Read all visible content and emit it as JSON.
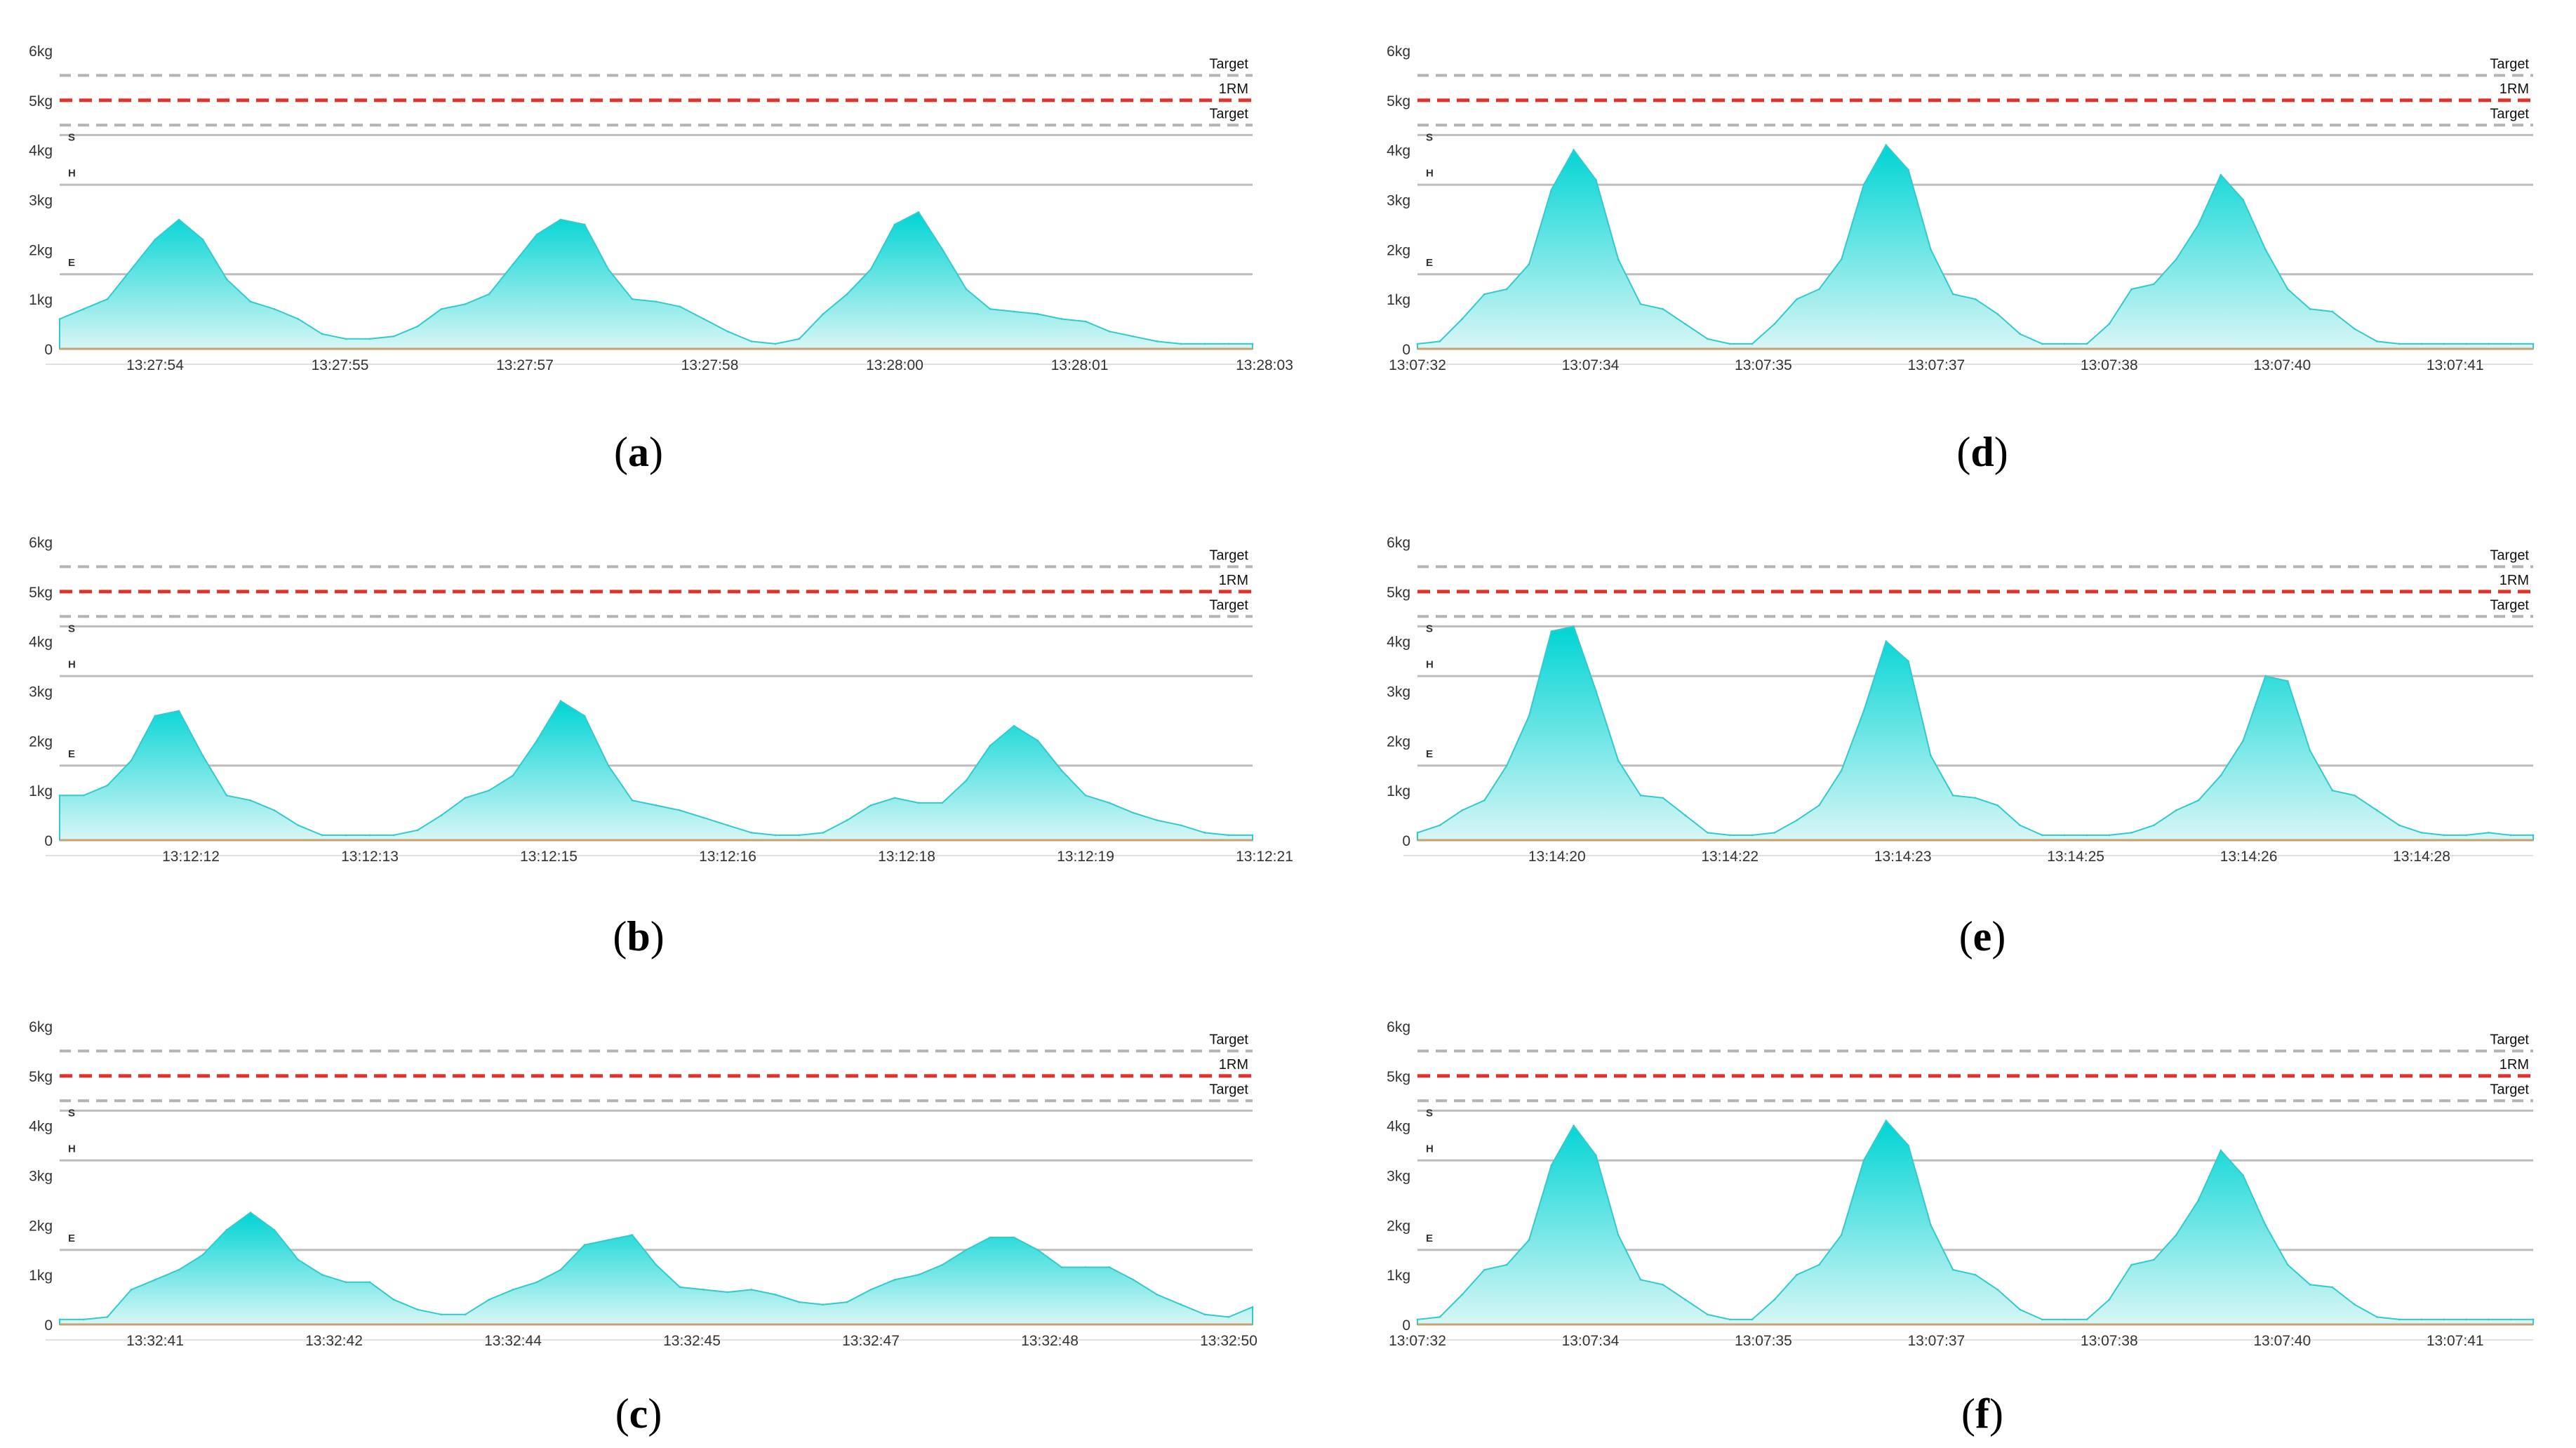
{
  "colors": {
    "area_top": "#00d4d4",
    "area_bottom": "#d8f6f6",
    "area_stroke": "#35c9c9",
    "one_rm": "#e0312a",
    "target_dash": "#b4b4b4",
    "zone_line": "#bdbdbd",
    "axis_text": "#333333",
    "baseline": "#c9a070"
  },
  "reference_lines": {
    "target_upper": {
      "value": 5.5,
      "label": "Target"
    },
    "one_rm": {
      "value": 5.0,
      "label": "1RM"
    },
    "target_lower": {
      "value": 4.5,
      "label": "Target"
    },
    "zones": [
      {
        "value": 4.3,
        "label": "S"
      },
      {
        "value": 3.3,
        "label": "H"
      },
      {
        "value": 1.5,
        "label": "E"
      }
    ]
  },
  "chart_data": [
    {
      "id": "a",
      "caption_letter": "a",
      "type": "area",
      "ylim": [
        0,
        6
      ],
      "yticks": [
        "0",
        "1kg",
        "2kg",
        "3kg",
        "4kg",
        "5kg",
        "6kg"
      ],
      "xlim": [
        0,
        100
      ],
      "xticks": [
        {
          "x": 8,
          "label": "13:27:54"
        },
        {
          "x": 23.5,
          "label": "13:27:55"
        },
        {
          "x": 39,
          "label": "13:27:57"
        },
        {
          "x": 54.5,
          "label": "13:27:58"
        },
        {
          "x": 70,
          "label": "13:28:00"
        },
        {
          "x": 85.5,
          "label": "13:28:01"
        },
        {
          "x": 101,
          "label": "13:28:03"
        }
      ],
      "x": [
        0,
        2,
        4,
        6,
        8,
        10,
        12,
        14,
        16,
        18,
        20,
        22,
        24,
        26,
        28,
        30,
        32,
        34,
        36,
        38,
        40,
        42,
        44,
        46,
        48,
        50,
        52,
        54,
        56,
        58,
        60,
        62,
        64,
        66,
        68,
        70,
        72,
        74,
        76,
        78,
        80,
        82,
        84,
        86,
        88,
        90,
        92,
        94,
        96,
        98,
        100
      ],
      "y": [
        0.6,
        0.8,
        1.0,
        1.6,
        2.2,
        2.6,
        2.2,
        1.4,
        0.95,
        0.8,
        0.6,
        0.3,
        0.2,
        0.2,
        0.25,
        0.45,
        0.8,
        0.9,
        1.1,
        1.7,
        2.3,
        2.6,
        2.5,
        1.6,
        1.0,
        0.95,
        0.85,
        0.6,
        0.35,
        0.15,
        0.1,
        0.2,
        0.7,
        1.1,
        1.6,
        2.5,
        2.75,
        2.0,
        1.2,
        0.8,
        0.75,
        0.7,
        0.6,
        0.55,
        0.35,
        0.25,
        0.15,
        0.1,
        0.1,
        0.1,
        0.1
      ]
    },
    {
      "id": "b",
      "caption_letter": "b",
      "type": "area",
      "ylim": [
        0,
        6
      ],
      "yticks": [
        "0",
        "1kg",
        "2kg",
        "3kg",
        "4kg",
        "5kg",
        "6kg"
      ],
      "xlim": [
        0,
        100
      ],
      "xticks": [
        {
          "x": 11,
          "label": "13:12:12"
        },
        {
          "x": 26,
          "label": "13:12:13"
        },
        {
          "x": 41,
          "label": "13:12:15"
        },
        {
          "x": 56,
          "label": "13:12:16"
        },
        {
          "x": 71,
          "label": "13:12:18"
        },
        {
          "x": 86,
          "label": "13:12:19"
        },
        {
          "x": 101,
          "label": "13:12:21"
        }
      ],
      "x": [
        0,
        2,
        4,
        6,
        8,
        10,
        12,
        14,
        16,
        18,
        20,
        22,
        24,
        26,
        28,
        30,
        32,
        34,
        36,
        38,
        40,
        42,
        44,
        46,
        48,
        50,
        52,
        54,
        56,
        58,
        60,
        62,
        64,
        66,
        68,
        70,
        72,
        74,
        76,
        78,
        80,
        82,
        84,
        86,
        88,
        90,
        92,
        94,
        96,
        98,
        100
      ],
      "y": [
        0.9,
        0.9,
        1.1,
        1.6,
        2.5,
        2.6,
        1.7,
        0.9,
        0.8,
        0.6,
        0.3,
        0.1,
        0.1,
        0.1,
        0.1,
        0.2,
        0.5,
        0.85,
        1.0,
        1.3,
        2.0,
        2.8,
        2.5,
        1.5,
        0.8,
        0.7,
        0.6,
        0.45,
        0.3,
        0.15,
        0.1,
        0.1,
        0.15,
        0.4,
        0.7,
        0.85,
        0.75,
        0.75,
        1.2,
        1.9,
        2.3,
        2.0,
        1.4,
        0.9,
        0.75,
        0.55,
        0.4,
        0.3,
        0.15,
        0.1,
        0.1
      ]
    },
    {
      "id": "c",
      "caption_letter": "c",
      "type": "area",
      "ylim": [
        0,
        6
      ],
      "yticks": [
        "0",
        "1kg",
        "2kg",
        "3kg",
        "4kg",
        "5kg",
        "6kg"
      ],
      "xlim": [
        0,
        100
      ],
      "xticks": [
        {
          "x": 8,
          "label": "13:32:41"
        },
        {
          "x": 23,
          "label": "13:32:42"
        },
        {
          "x": 38,
          "label": "13:32:44"
        },
        {
          "x": 53,
          "label": "13:32:45"
        },
        {
          "x": 68,
          "label": "13:32:47"
        },
        {
          "x": 83,
          "label": "13:32:48"
        },
        {
          "x": 98,
          "label": "13:32:50"
        }
      ],
      "x": [
        0,
        2,
        4,
        6,
        8,
        10,
        12,
        14,
        16,
        18,
        20,
        22,
        24,
        26,
        28,
        30,
        32,
        34,
        36,
        38,
        40,
        42,
        44,
        46,
        48,
        50,
        52,
        54,
        56,
        58,
        60,
        62,
        64,
        66,
        68,
        70,
        72,
        74,
        76,
        78,
        80,
        82,
        84,
        86,
        88,
        90,
        92,
        94,
        96,
        98,
        100
      ],
      "y": [
        0.1,
        0.1,
        0.15,
        0.7,
        0.9,
        1.1,
        1.4,
        1.9,
        2.25,
        1.9,
        1.3,
        1.0,
        0.85,
        0.85,
        0.5,
        0.3,
        0.2,
        0.2,
        0.5,
        0.7,
        0.85,
        1.1,
        1.6,
        1.7,
        1.8,
        1.2,
        0.75,
        0.7,
        0.65,
        0.7,
        0.6,
        0.45,
        0.4,
        0.45,
        0.7,
        0.9,
        1.0,
        1.2,
        1.5,
        1.75,
        1.75,
        1.5,
        1.15,
        1.15,
        1.15,
        0.9,
        0.6,
        0.4,
        0.2,
        0.15,
        0.35
      ]
    },
    {
      "id": "d",
      "caption_letter": "d",
      "type": "area",
      "ylim": [
        0,
        6
      ],
      "yticks": [
        "0",
        "1kg",
        "2kg",
        "3kg",
        "4kg",
        "5kg",
        "6kg"
      ],
      "xlim": [
        0,
        100
      ],
      "xticks": [
        {
          "x": 0,
          "label": "13:07:32"
        },
        {
          "x": 15.5,
          "label": "13:07:34"
        },
        {
          "x": 31,
          "label": "13:07:35"
        },
        {
          "x": 46.5,
          "label": "13:07:37"
        },
        {
          "x": 62,
          "label": "13:07:38"
        },
        {
          "x": 77.5,
          "label": "13:07:40"
        },
        {
          "x": 93,
          "label": "13:07:41"
        }
      ],
      "x": [
        0,
        2,
        4,
        6,
        8,
        10,
        12,
        14,
        16,
        18,
        20,
        22,
        24,
        26,
        28,
        30,
        32,
        34,
        36,
        38,
        40,
        42,
        44,
        46,
        48,
        50,
        52,
        54,
        56,
        58,
        60,
        62,
        64,
        66,
        68,
        70,
        72,
        74,
        76,
        78,
        80,
        82,
        84,
        86,
        88,
        90,
        92,
        94,
        96,
        98,
        100
      ],
      "y": [
        0.1,
        0.15,
        0.6,
        1.1,
        1.2,
        1.7,
        3.2,
        4.0,
        3.4,
        1.8,
        0.9,
        0.8,
        0.5,
        0.2,
        0.1,
        0.1,
        0.5,
        1.0,
        1.2,
        1.8,
        3.3,
        4.1,
        3.6,
        2.0,
        1.1,
        1.0,
        0.7,
        0.3,
        0.1,
        0.1,
        0.1,
        0.5,
        1.2,
        1.3,
        1.8,
        2.5,
        3.5,
        3.0,
        2.0,
        1.2,
        0.8,
        0.75,
        0.4,
        0.15,
        0.1,
        0.1,
        0.1,
        0.1,
        0.1,
        0.1,
        0.1
      ]
    },
    {
      "id": "e",
      "caption_letter": "e",
      "type": "area",
      "ylim": [
        0,
        6
      ],
      "yticks": [
        "0",
        "1kg",
        "2kg",
        "3kg",
        "4kg",
        "5kg",
        "6kg"
      ],
      "xlim": [
        0,
        100
      ],
      "xticks": [
        {
          "x": 12.5,
          "label": "13:14:20"
        },
        {
          "x": 28,
          "label": "13:14:22"
        },
        {
          "x": 43.5,
          "label": "13:14:23"
        },
        {
          "x": 59,
          "label": "13:14:25"
        },
        {
          "x": 74.5,
          "label": "13:14:26"
        },
        {
          "x": 90,
          "label": "13:14:28"
        }
      ],
      "x": [
        0,
        2,
        4,
        6,
        8,
        10,
        12,
        14,
        16,
        18,
        20,
        22,
        24,
        26,
        28,
        30,
        32,
        34,
        36,
        38,
        40,
        42,
        44,
        46,
        48,
        50,
        52,
        54,
        56,
        58,
        60,
        62,
        64,
        66,
        68,
        70,
        72,
        74,
        76,
        78,
        80,
        82,
        84,
        86,
        88,
        90,
        92,
        94,
        96,
        98,
        100
      ],
      "y": [
        0.15,
        0.3,
        0.6,
        0.8,
        1.5,
        2.5,
        4.2,
        4.3,
        3.0,
        1.6,
        0.9,
        0.85,
        0.5,
        0.15,
        0.1,
        0.1,
        0.15,
        0.4,
        0.7,
        1.4,
        2.6,
        4.0,
        3.6,
        1.7,
        0.9,
        0.85,
        0.7,
        0.3,
        0.1,
        0.1,
        0.1,
        0.1,
        0.15,
        0.3,
        0.6,
        0.8,
        1.3,
        2.0,
        3.3,
        3.2,
        1.8,
        1.0,
        0.9,
        0.6,
        0.3,
        0.15,
        0.1,
        0.1,
        0.15,
        0.1,
        0.1
      ]
    },
    {
      "id": "f",
      "caption_letter": "f",
      "type": "area",
      "ylim": [
        0,
        6
      ],
      "yticks": [
        "0",
        "1kg",
        "2kg",
        "3kg",
        "4kg",
        "5kg",
        "6kg"
      ],
      "xlim": [
        0,
        100
      ],
      "xticks": [
        {
          "x": 0,
          "label": "13:07:32"
        },
        {
          "x": 15.5,
          "label": "13:07:34"
        },
        {
          "x": 31,
          "label": "13:07:35"
        },
        {
          "x": 46.5,
          "label": "13:07:37"
        },
        {
          "x": 62,
          "label": "13:07:38"
        },
        {
          "x": 77.5,
          "label": "13:07:40"
        },
        {
          "x": 93,
          "label": "13:07:41"
        }
      ],
      "x": [
        0,
        2,
        4,
        6,
        8,
        10,
        12,
        14,
        16,
        18,
        20,
        22,
        24,
        26,
        28,
        30,
        32,
        34,
        36,
        38,
        40,
        42,
        44,
        46,
        48,
        50,
        52,
        54,
        56,
        58,
        60,
        62,
        64,
        66,
        68,
        70,
        72,
        74,
        76,
        78,
        80,
        82,
        84,
        86,
        88,
        90,
        92,
        94,
        96,
        98,
        100
      ],
      "y": [
        0.1,
        0.15,
        0.6,
        1.1,
        1.2,
        1.7,
        3.2,
        4.0,
        3.4,
        1.8,
        0.9,
        0.8,
        0.5,
        0.2,
        0.1,
        0.1,
        0.5,
        1.0,
        1.2,
        1.8,
        3.3,
        4.1,
        3.6,
        2.0,
        1.1,
        1.0,
        0.7,
        0.3,
        0.1,
        0.1,
        0.1,
        0.5,
        1.2,
        1.3,
        1.8,
        2.5,
        3.5,
        3.0,
        2.0,
        1.2,
        0.8,
        0.75,
        0.4,
        0.15,
        0.1,
        0.1,
        0.1,
        0.1,
        0.1,
        0.1,
        0.1
      ]
    }
  ]
}
